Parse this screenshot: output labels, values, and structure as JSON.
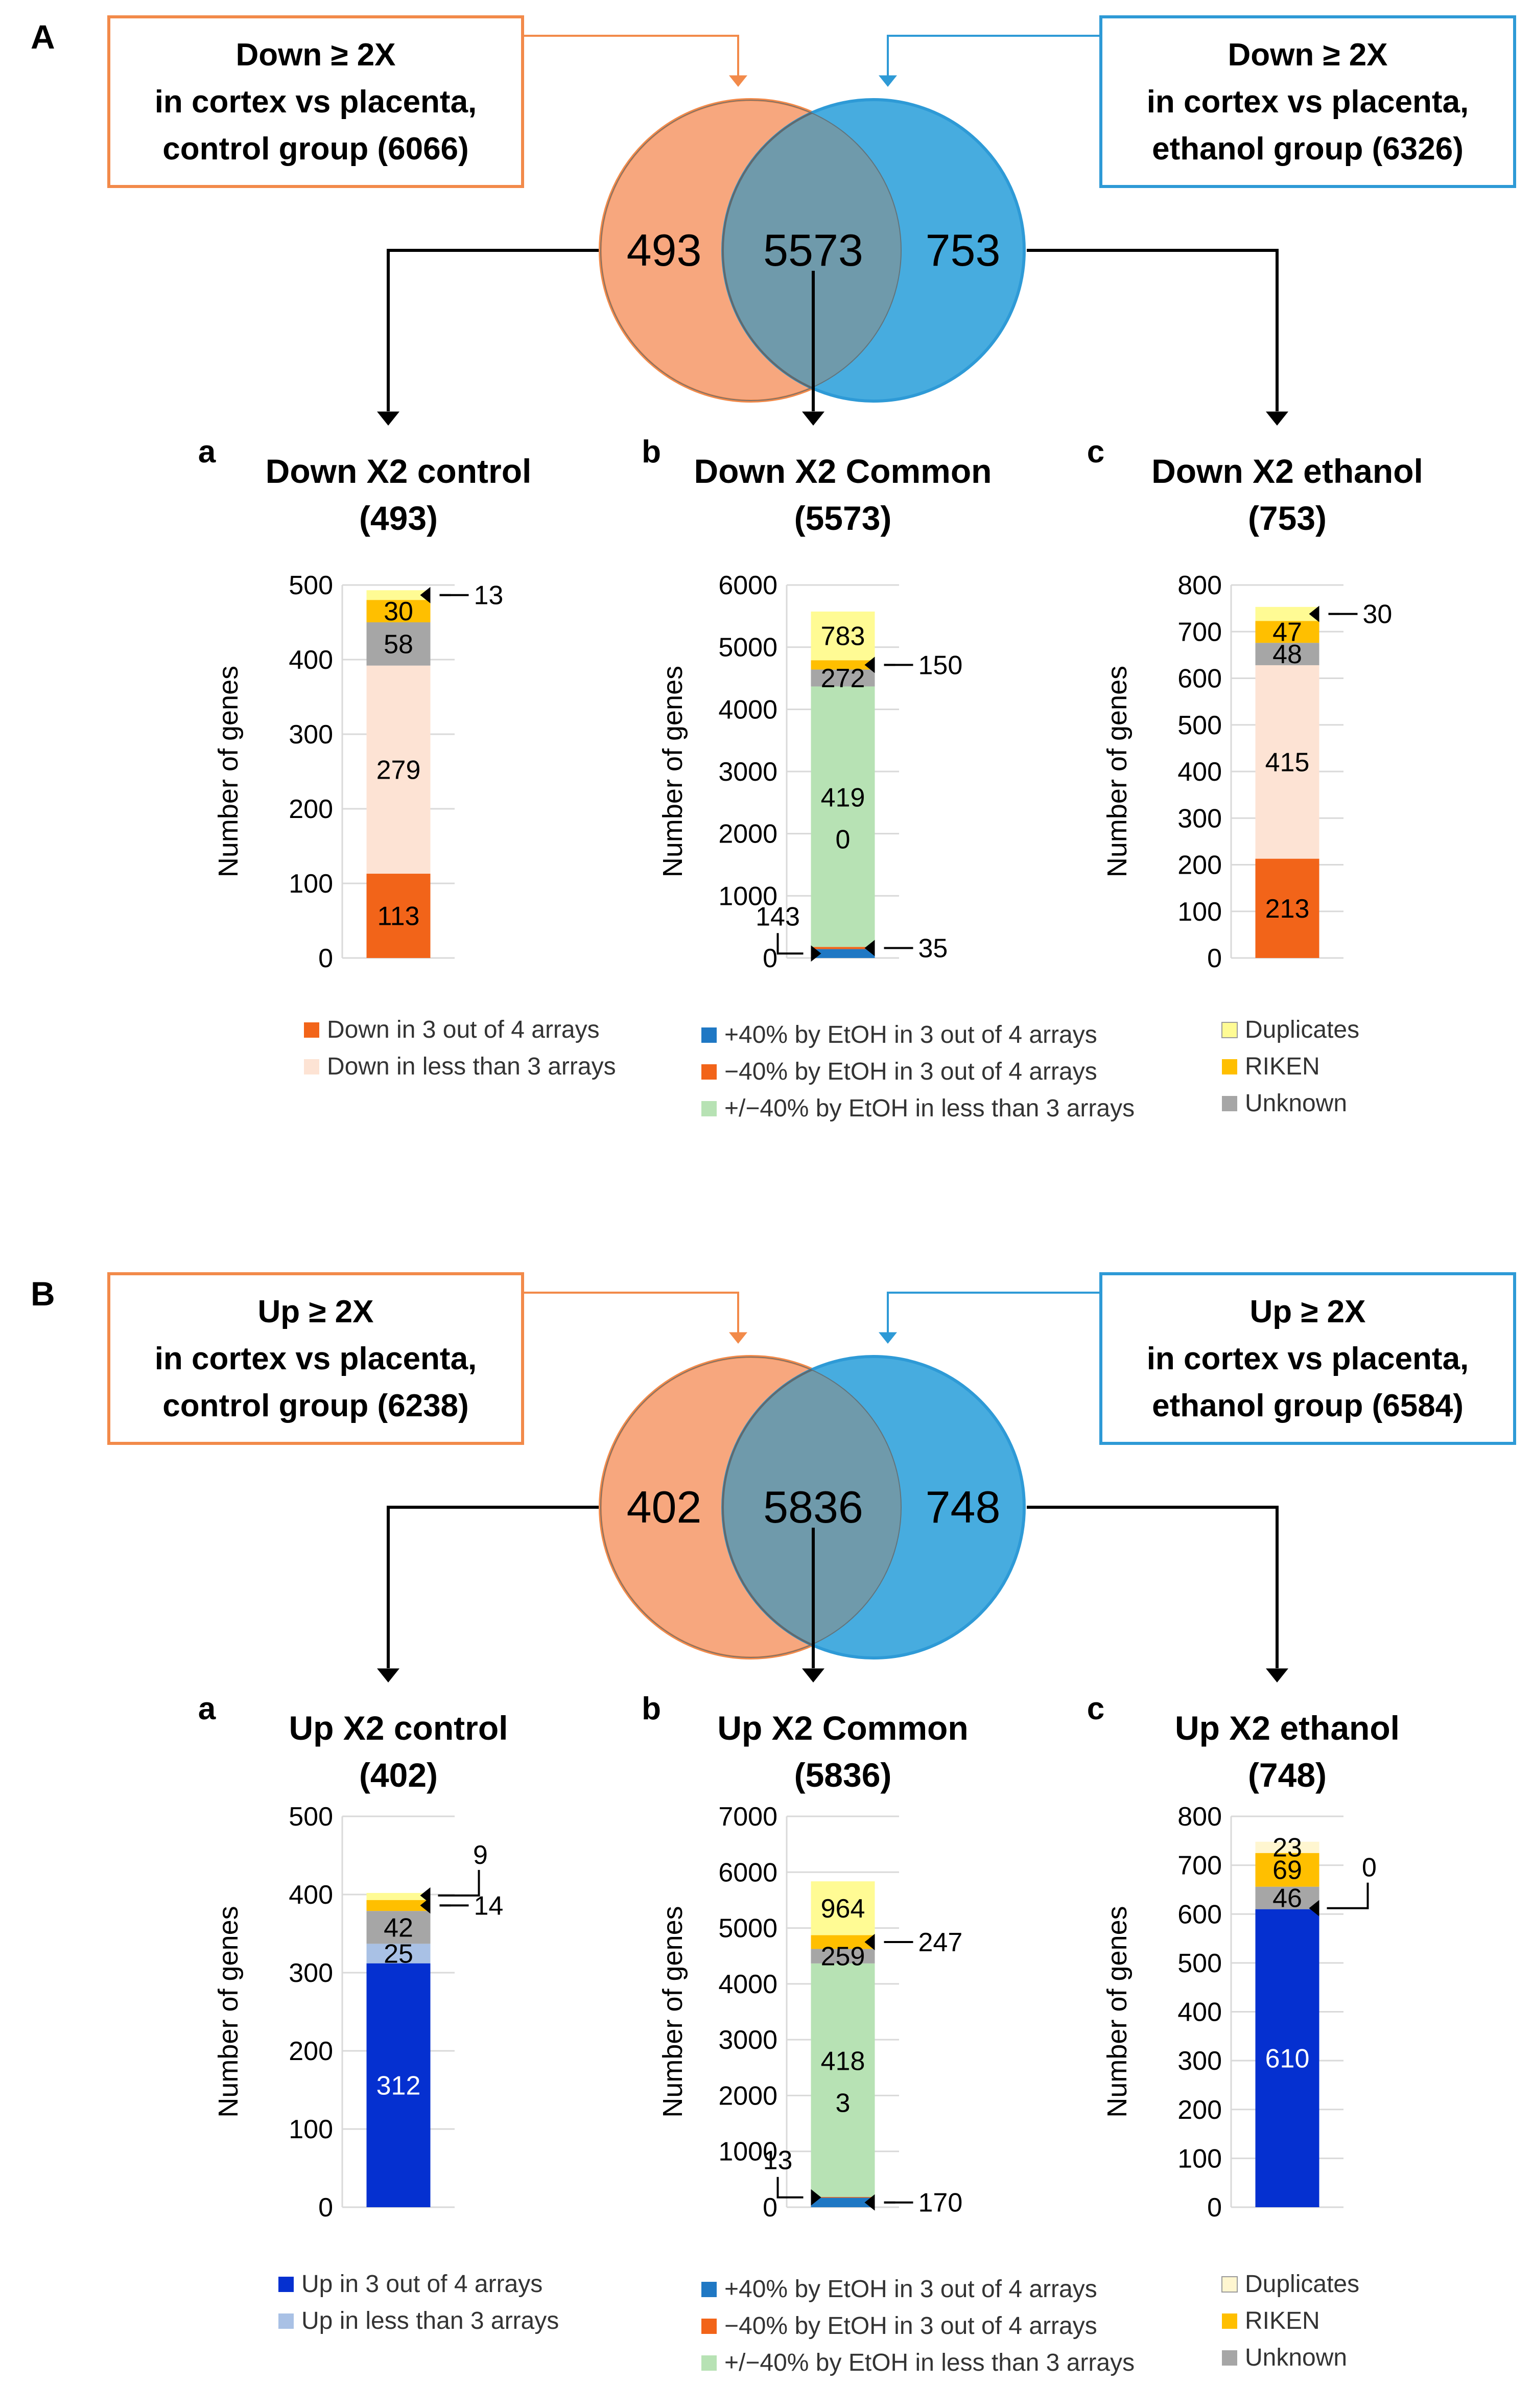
{
  "colors": {
    "orange": "#F28A4A",
    "orange_fill": "#F7A77E",
    "blue": "#2E9AD6",
    "blue_fill": "#47ACDF",
    "overlap": "#6F9AAB",
    "dark_orange": "#F26419",
    "peach": "#FDE3D4",
    "green": "#B7E2B4",
    "light_yellow": "#FFFB94",
    "light_yellow_B": "#FFF6D0",
    "gold": "#FFBF00",
    "grey": "#A6A6A6",
    "gridline": "#D9D9D9",
    "royal_blue": "#0530D0",
    "light_blue": "#A9C1E5",
    "steel_blue": "#1F78C4"
  },
  "panels": [
    {
      "letter": "A",
      "box_left": [
        "Down ≥ 2X",
        "in cortex vs placenta,",
        "control group (6066)"
      ],
      "box_right": [
        "Down ≥ 2X",
        "in cortex vs placenta,",
        "ethanol group (6326)"
      ],
      "venn": {
        "left_only": "493",
        "common": "5573",
        "right_only": "753"
      }
    },
    {
      "letter": "B",
      "box_left": [
        "Up ≥ 2X",
        "in cortex vs placenta,",
        "control group (6238)"
      ],
      "box_right": [
        "Up ≥ 2X",
        "in cortex vs placenta,",
        "ethanol group (6584)"
      ],
      "venn": {
        "left_only": "402",
        "common": "5836",
        "right_only": "748"
      }
    }
  ],
  "chart_data": [
    {
      "panel": "A",
      "sub": "a",
      "type": "bar",
      "stacked": true,
      "title": [
        "Down X2 control",
        "(493)"
      ],
      "ylabel": "Number of genes",
      "ylim": [
        0,
        500
      ],
      "ticks": [
        0,
        100,
        200,
        300,
        400,
        500
      ],
      "segments": [
        {
          "name": "Down in 3 out of 4 arrays",
          "value": 113,
          "color": "dark_orange",
          "label": "113",
          "label_color": "#000000"
        },
        {
          "name": "Down in less than 3 arrays",
          "value": 279,
          "color": "peach",
          "label": "279",
          "label_color": "#000000"
        },
        {
          "name": "Unknown",
          "value": 58,
          "color": "grey",
          "label": "58",
          "label_color": "#000000"
        },
        {
          "name": "RIKEN",
          "value": 30,
          "color": "gold",
          "label": "30",
          "label_color": "#000000"
        },
        {
          "name": "Duplicates",
          "value": 13,
          "color": "light_yellow",
          "label": "",
          "label_color": "#000000"
        }
      ],
      "callouts": [
        {
          "text": "13",
          "side": "right",
          "seg": 4
        }
      ]
    },
    {
      "panel": "A",
      "sub": "b",
      "type": "bar",
      "stacked": true,
      "title": [
        "Down X2 Common",
        "(5573)"
      ],
      "ylabel": "Number of genes",
      "ylim": [
        0,
        6000
      ],
      "ticks": [
        0,
        1000,
        2000,
        3000,
        4000,
        5000,
        6000
      ],
      "segments": [
        {
          "name": "+40% by EtOH in 3 out of 4 arrays",
          "value": 143,
          "color": "steel_blue",
          "label": "",
          "label_color": "#000000"
        },
        {
          "name": "−40% by EtOH in 3 out of 4 arrays",
          "value": 35,
          "color": "dark_orange",
          "label": "",
          "label_color": "#000000"
        },
        {
          "name": "+/−40% by EtOH in less than 3 arrays",
          "value": 4190,
          "color": "green",
          "label": "419|0",
          "label_color": "#000000"
        },
        {
          "name": "Unknown",
          "value": 272,
          "color": "grey",
          "label": "272",
          "label_color": "#000000"
        },
        {
          "name": "RIKEN",
          "value": 150,
          "color": "gold",
          "label": "",
          "label_color": "#000000"
        },
        {
          "name": "Duplicates",
          "value": 783,
          "color": "light_yellow",
          "label": "783",
          "label_color": "#000000"
        }
      ],
      "callouts": [
        {
          "text": "143",
          "side": "left",
          "seg": 0
        },
        {
          "text": "35",
          "side": "right",
          "seg": 1
        },
        {
          "text": "150",
          "side": "right",
          "seg": 4
        }
      ]
    },
    {
      "panel": "A",
      "sub": "c",
      "type": "bar",
      "stacked": true,
      "title": [
        "Down X2 ethanol",
        "(753)"
      ],
      "ylabel": "Number of genes",
      "ylim": [
        0,
        800
      ],
      "ticks": [
        0,
        100,
        200,
        300,
        400,
        500,
        600,
        700,
        800
      ],
      "segments": [
        {
          "name": "Down in 3 out of 4 arrays",
          "value": 213,
          "color": "dark_orange",
          "label": "213",
          "label_color": "#000000"
        },
        {
          "name": "Down in less than 3 arrays",
          "value": 415,
          "color": "peach",
          "label": "415",
          "label_color": "#000000"
        },
        {
          "name": "Unknown",
          "value": 48,
          "color": "grey",
          "label": "48",
          "label_color": "#000000"
        },
        {
          "name": "RIKEN",
          "value": 47,
          "color": "gold",
          "label": "47",
          "label_color": "#000000"
        },
        {
          "name": "Duplicates",
          "value": 30,
          "color": "light_yellow",
          "label": "",
          "label_color": "#000000"
        }
      ],
      "callouts": [
        {
          "text": "30",
          "side": "right",
          "seg": 4
        }
      ]
    },
    {
      "panel": "B",
      "sub": "a",
      "type": "bar",
      "stacked": true,
      "title": [
        "Up X2 control",
        "(402)"
      ],
      "ylabel": "Number of genes",
      "ylim": [
        0,
        500
      ],
      "ticks": [
        0,
        100,
        200,
        300,
        400,
        500
      ],
      "segments": [
        {
          "name": "Up in 3 out of 4 arrays",
          "value": 312,
          "color": "royal_blue",
          "label": "312",
          "label_color": "#FFFFFF"
        },
        {
          "name": "Up in less than 3 arrays",
          "value": 25,
          "color": "light_blue",
          "label": "25",
          "label_color": "#000000"
        },
        {
          "name": "Unknown",
          "value": 42,
          "color": "grey",
          "label": "42",
          "label_color": "#000000"
        },
        {
          "name": "RIKEN",
          "value": 14,
          "color": "gold",
          "label": "",
          "label_color": "#000000"
        },
        {
          "name": "Duplicates",
          "value": 9,
          "color": "light_yellow",
          "label": "",
          "label_color": "#000000"
        }
      ],
      "callouts": [
        {
          "text": "14",
          "side": "right",
          "seg": 3
        },
        {
          "text": "9",
          "side": "rightup",
          "seg": 4
        }
      ]
    },
    {
      "panel": "B",
      "sub": "b",
      "type": "bar",
      "stacked": true,
      "title": [
        "Up X2 Common",
        "(5836)"
      ],
      "ylabel": "Number of genes",
      "ylim": [
        0,
        7000
      ],
      "ticks": [
        0,
        1000,
        2000,
        3000,
        4000,
        5000,
        6000,
        7000
      ],
      "segments": [
        {
          "name": "+40% by EtOH in 3 out of 4 arrays",
          "value": 170,
          "color": "steel_blue",
          "label": "",
          "label_color": "#000000"
        },
        {
          "name": "−40% by EtOH in 3 out of 4 arrays",
          "value": 13,
          "color": "dark_orange",
          "label": "",
          "label_color": "#000000"
        },
        {
          "name": "+/−40% by EtOH in less than 3 arrays",
          "value": 4183,
          "color": "green",
          "label": "418|3",
          "label_color": "#000000"
        },
        {
          "name": "Unknown",
          "value": 259,
          "color": "grey",
          "label": "259",
          "label_color": "#000000"
        },
        {
          "name": "RIKEN",
          "value": 247,
          "color": "gold",
          "label": "",
          "label_color": "#000000"
        },
        {
          "name": "Duplicates",
          "value": 964,
          "color": "light_yellow",
          "label": "964",
          "label_color": "#000000"
        }
      ],
      "callouts": [
        {
          "text": "13",
          "side": "left",
          "seg": 1
        },
        {
          "text": "170",
          "side": "right",
          "seg": 0
        },
        {
          "text": "247",
          "side": "right",
          "seg": 4
        }
      ]
    },
    {
      "panel": "B",
      "sub": "c",
      "type": "bar",
      "stacked": true,
      "title": [
        "Up X2 ethanol",
        "(748)"
      ],
      "ylabel": "Number of genes",
      "ylim": [
        0,
        800
      ],
      "ticks": [
        0,
        100,
        200,
        300,
        400,
        500,
        600,
        700,
        800
      ],
      "segments": [
        {
          "name": "Up in 3 out of 4 arrays",
          "value": 610,
          "color": "royal_blue",
          "label": "610",
          "label_color": "#FFFFFF"
        },
        {
          "name": "Up in less than 3 arrays",
          "value": 0,
          "color": "light_blue",
          "label": "",
          "label_color": "#000000"
        },
        {
          "name": "Unknown",
          "value": 46,
          "color": "grey",
          "label": "46",
          "label_color": "#000000"
        },
        {
          "name": "RIKEN",
          "value": 69,
          "color": "gold",
          "label": "69",
          "label_color": "#000000"
        },
        {
          "name": "Duplicates",
          "value": 23,
          "color": "light_yellow_B",
          "label": "23",
          "label_color": "#000000"
        }
      ],
      "callouts": [
        {
          "text": "0",
          "side": "rightup",
          "seg": 1
        }
      ]
    }
  ],
  "legends": [
    {
      "panel": "A",
      "col": "left",
      "items": [
        {
          "text": "Down in 3 out of 4 arrays",
          "color": "dark_orange"
        },
        {
          "text": "Down in less than 3 arrays",
          "color": "peach"
        }
      ]
    },
    {
      "panel": "A",
      "col": "middle",
      "items": [
        {
          "text": "+40% by EtOH in 3 out of 4 arrays",
          "color": "steel_blue"
        },
        {
          "text": "−40% by EtOH in 3 out of 4 arrays",
          "color": "dark_orange"
        },
        {
          "text": "+/−40% by EtOH in less than 3 arrays",
          "color": "green"
        }
      ]
    },
    {
      "panel": "A",
      "col": "right",
      "items": [
        {
          "text": "Duplicates",
          "color": "light_yellow"
        },
        {
          "text": "RIKEN",
          "color": "gold"
        },
        {
          "text": "Unknown",
          "color": "grey"
        }
      ]
    },
    {
      "panel": "B",
      "col": "left",
      "items": [
        {
          "text": "Up in 3 out of 4 arrays",
          "color": "royal_blue"
        },
        {
          "text": "Up in less than 3 arrays",
          "color": "light_blue"
        }
      ]
    },
    {
      "panel": "B",
      "col": "middle",
      "items": [
        {
          "text": "+40% by EtOH in 3 out of 4 arrays",
          "color": "steel_blue"
        },
        {
          "text": "−40% by EtOH in 3 out of 4 arrays",
          "color": "dark_orange"
        },
        {
          "text": "+/−40% by EtOH in less than 3 arrays",
          "color": "green"
        }
      ]
    },
    {
      "panel": "B",
      "col": "right",
      "items": [
        {
          "text": "Duplicates",
          "color": "light_yellow_B"
        },
        {
          "text": "RIKEN",
          "color": "gold"
        },
        {
          "text": "Unknown",
          "color": "grey"
        }
      ]
    }
  ]
}
